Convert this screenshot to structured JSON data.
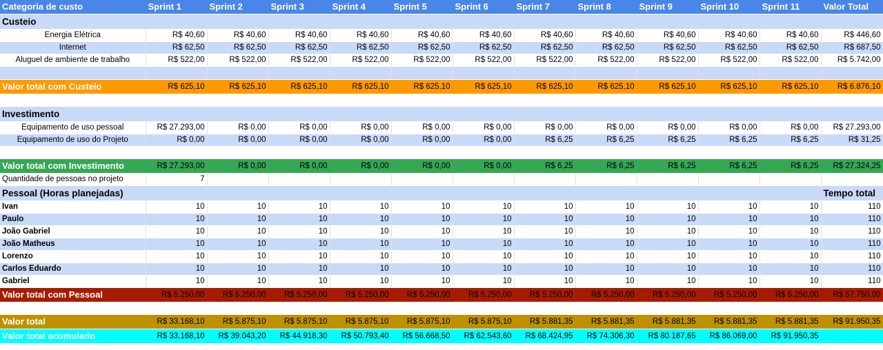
{
  "header": [
    "Categoria de custo",
    "Sprint 1",
    "Sprint 2",
    "Sprint 3",
    "Sprint 4",
    "Sprint 5",
    "Sprint 6",
    "Sprint 7",
    "Sprint 8",
    "Sprint 9",
    "Sprint 10",
    "Sprint 11",
    "Valor Total"
  ],
  "custeio": {
    "title": "Custeio",
    "rows": [
      {
        "label": "Energia Elétrica",
        "values": [
          "R$ 40,60",
          "R$ 40,60",
          "R$ 40,60",
          "R$ 40,60",
          "R$ 40,60",
          "R$ 40,60",
          "R$ 40,60",
          "R$ 40,60",
          "R$ 40,60",
          "R$ 40,60",
          "R$ 40,60",
          "R$ 446,60"
        ]
      },
      {
        "label": "Internet",
        "values": [
          "R$ 62,50",
          "R$ 62,50",
          "R$ 62,50",
          "R$ 62,50",
          "R$ 62,50",
          "R$ 62,50",
          "R$ 62,50",
          "R$ 62,50",
          "R$ 62,50",
          "R$ 62,50",
          "R$ 62,50",
          "R$ 687,50"
        ]
      },
      {
        "label": "Aluguel de ambiente de trabalho",
        "values": [
          "R$ 522,00",
          "R$ 522,00",
          "R$ 522,00",
          "R$ 522,00",
          "R$ 522,00",
          "R$ 522,00",
          "R$ 522,00",
          "R$ 522,00",
          "R$ 522,00",
          "R$ 522,00",
          "R$ 522,00",
          "R$ 5.742,00"
        ]
      }
    ],
    "total": {
      "label": "Valor total com Custeio",
      "values": [
        "R$ 625,10",
        "R$ 625,10",
        "R$ 625,10",
        "R$ 625,10",
        "R$ 625,10",
        "R$ 625,10",
        "R$ 625,10",
        "R$ 625,10",
        "R$ 625,10",
        "R$ 625,10",
        "R$ 625,10",
        "R$ 6.876,10"
      ]
    }
  },
  "investimento": {
    "title": "Investimento",
    "rows": [
      {
        "label": "Equipamento de uso pessoal",
        "values": [
          "R$ 27.293,00",
          "R$ 0,00",
          "R$ 0,00",
          "R$ 0,00",
          "R$ 0,00",
          "R$ 0,00",
          "R$ 0,00",
          "R$ 0,00",
          "R$ 0,00",
          "R$ 0,00",
          "R$ 0,00",
          "R$ 27.293,00"
        ]
      },
      {
        "label": "Equipamento de uso do Projeto",
        "values": [
          "R$ 0,00",
          "R$ 0,00",
          "R$ 0,00",
          "R$ 0,00",
          "R$ 0,00",
          "R$ 0,00",
          "R$ 6,25",
          "R$ 6,25",
          "R$ 6,25",
          "R$ 6,25",
          "R$ 6,25",
          "R$ 31,25"
        ]
      }
    ],
    "total": {
      "label": "Valor total com Investimento",
      "values": [
        "R$ 27.293,00",
        "R$ 0,00",
        "R$ 0,00",
        "R$ 0,00",
        "R$ 0,00",
        "R$ 0,00",
        "R$ 6,25",
        "R$ 6,25",
        "R$ 6,25",
        "R$ 6,25",
        "R$ 6,25",
        "R$ 27.324,25"
      ]
    }
  },
  "people_count": {
    "label": "Quantidade de pessoas no projeto",
    "value": "7"
  },
  "pessoal": {
    "title": "Pessoal (Horas planejadas)",
    "tempo_label": "Tempo total",
    "rows": [
      {
        "label": "Ivan",
        "values": [
          "10",
          "10",
          "10",
          "10",
          "10",
          "10",
          "10",
          "10",
          "10",
          "10",
          "10",
          "110"
        ]
      },
      {
        "label": "Paulo",
        "values": [
          "10",
          "10",
          "10",
          "10",
          "10",
          "10",
          "10",
          "10",
          "10",
          "10",
          "10",
          "110"
        ]
      },
      {
        "label": "João Gabriel",
        "values": [
          "10",
          "10",
          "10",
          "10",
          "10",
          "10",
          "10",
          "10",
          "10",
          "10",
          "10",
          "110"
        ]
      },
      {
        "label": "João Matheus",
        "values": [
          "10",
          "10",
          "10",
          "10",
          "10",
          "10",
          "10",
          "10",
          "10",
          "10",
          "10",
          "110"
        ]
      },
      {
        "label": "Lorenzo",
        "values": [
          "10",
          "10",
          "10",
          "10",
          "10",
          "10",
          "10",
          "10",
          "10",
          "10",
          "10",
          "110"
        ]
      },
      {
        "label": "Carlos Eduardo",
        "values": [
          "10",
          "10",
          "10",
          "10",
          "10",
          "10",
          "10",
          "10",
          "10",
          "10",
          "10",
          "110"
        ]
      },
      {
        "label": "Gabriel",
        "values": [
          "10",
          "10",
          "10",
          "10",
          "10",
          "10",
          "10",
          "10",
          "10",
          "10",
          "10",
          "110"
        ]
      }
    ],
    "total": {
      "label": "Valor total com Pessoal",
      "values": [
        "R$ 5.250,00",
        "R$ 5.250,00",
        "R$ 5.250,00",
        "R$ 5.250,00",
        "R$ 5.250,00",
        "R$ 5.250,00",
        "R$ 5.250,00",
        "R$ 5.250,00",
        "R$ 5.250,00",
        "R$ 5.250,00",
        "R$ 5.250,00",
        "R$ 57.750,00"
      ]
    }
  },
  "valor_total": {
    "label": "Valor total",
    "values": [
      "R$ 33.168,10",
      "R$ 5.875,10",
      "R$ 5.875,10",
      "R$ 5.875,10",
      "R$ 5.875,10",
      "R$ 5.875,10",
      "R$ 5.881,35",
      "R$ 5.881,35",
      "R$ 5.881,35",
      "R$ 5.881,35",
      "R$ 5.881,35",
      "R$ 91.950,35"
    ]
  },
  "valor_acumulado": {
    "label": "Valor total acumulado",
    "values": [
      "R$ 33.168,10",
      "R$ 39.043,20",
      "R$ 44.918,30",
      "R$ 50.793,40",
      "R$ 56.668,50",
      "R$ 62.543,60",
      "R$ 68.424,95",
      "R$ 74.306,30",
      "R$ 80.187,65",
      "R$ 86.069,00",
      "R$ 91.950,35",
      ""
    ]
  }
}
